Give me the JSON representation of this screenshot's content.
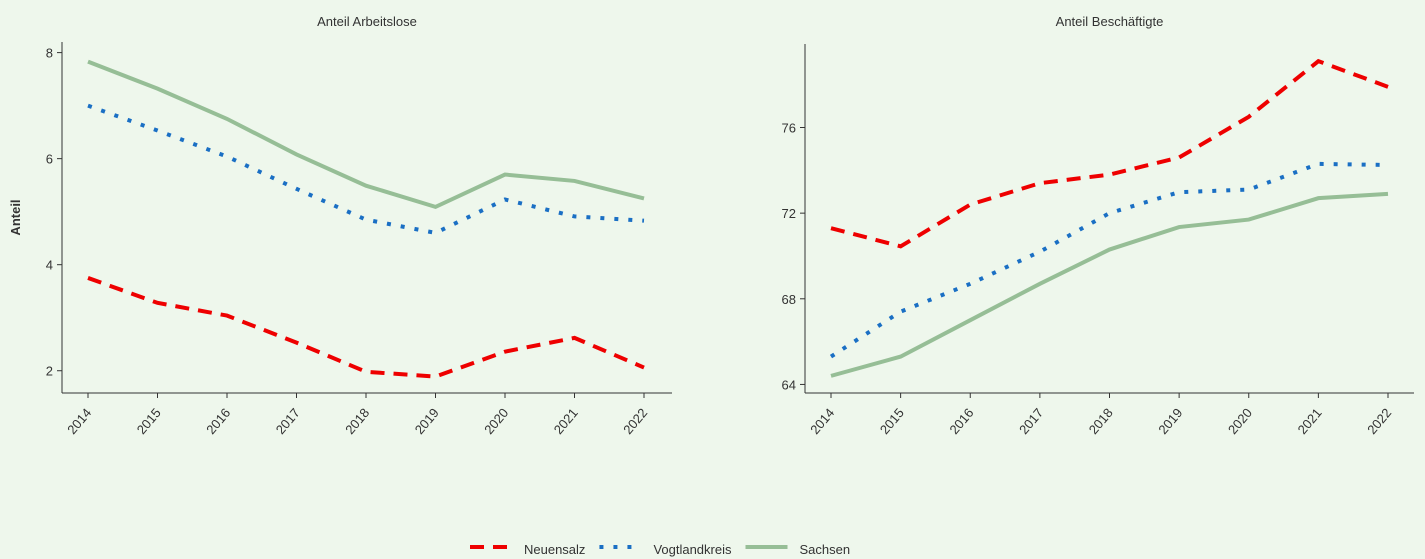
{
  "chart_data": [
    {
      "type": "line",
      "title": "Anteil Arbeitslose",
      "ylabel": "Anteil",
      "categories": [
        "2014",
        "2015",
        "2016",
        "2017",
        "2018",
        "2019",
        "2020",
        "2021",
        "2022"
      ],
      "series": [
        {
          "name": "Neuensalz",
          "color": "#ee0000",
          "linestyle": "dashed",
          "values": [
            3.75,
            3.28,
            3.04,
            2.53,
            1.98,
            1.89,
            2.36,
            2.62,
            2.06
          ]
        },
        {
          "name": "Vogtlandkreis",
          "color": "#1a6fc4",
          "linestyle": "dotted",
          "values": [
            7.0,
            6.53,
            6.04,
            5.43,
            4.85,
            4.6,
            5.23,
            4.91,
            4.83
          ]
        },
        {
          "name": "Sachsen",
          "color": "#96be96",
          "linestyle": "solid",
          "values": [
            7.83,
            7.32,
            6.75,
            6.08,
            5.49,
            5.09,
            5.7,
            5.58,
            5.25
          ]
        }
      ],
      "ylim": [
        1.58,
        8.2
      ],
      "yticks": [
        2,
        4,
        6,
        8
      ]
    },
    {
      "type": "line",
      "title": "Anteil Beschäftigte",
      "categories": [
        "2014",
        "2015",
        "2016",
        "2017",
        "2018",
        "2019",
        "2020",
        "2021",
        "2022"
      ],
      "series": [
        {
          "color": "#ee0000",
          "linestyle": "dashed",
          "values": [
            71.3,
            70.45,
            72.4,
            73.4,
            73.8,
            74.6,
            76.5,
            79.1,
            77.9
          ]
        },
        {
          "color": "#1a6fc4",
          "linestyle": "dotted",
          "values": [
            65.3,
            67.4,
            68.7,
            70.2,
            72.0,
            72.98,
            73.1,
            74.3,
            74.25
          ]
        },
        {
          "color": "#96be96",
          "linestyle": "solid",
          "values": [
            64.4,
            65.3,
            67.0,
            68.7,
            70.3,
            71.35,
            71.7,
            72.7,
            72.9
          ]
        }
      ],
      "ylim": [
        63.6,
        79.9
      ],
      "yticks": [
        64,
        68,
        72,
        76
      ]
    }
  ]
}
